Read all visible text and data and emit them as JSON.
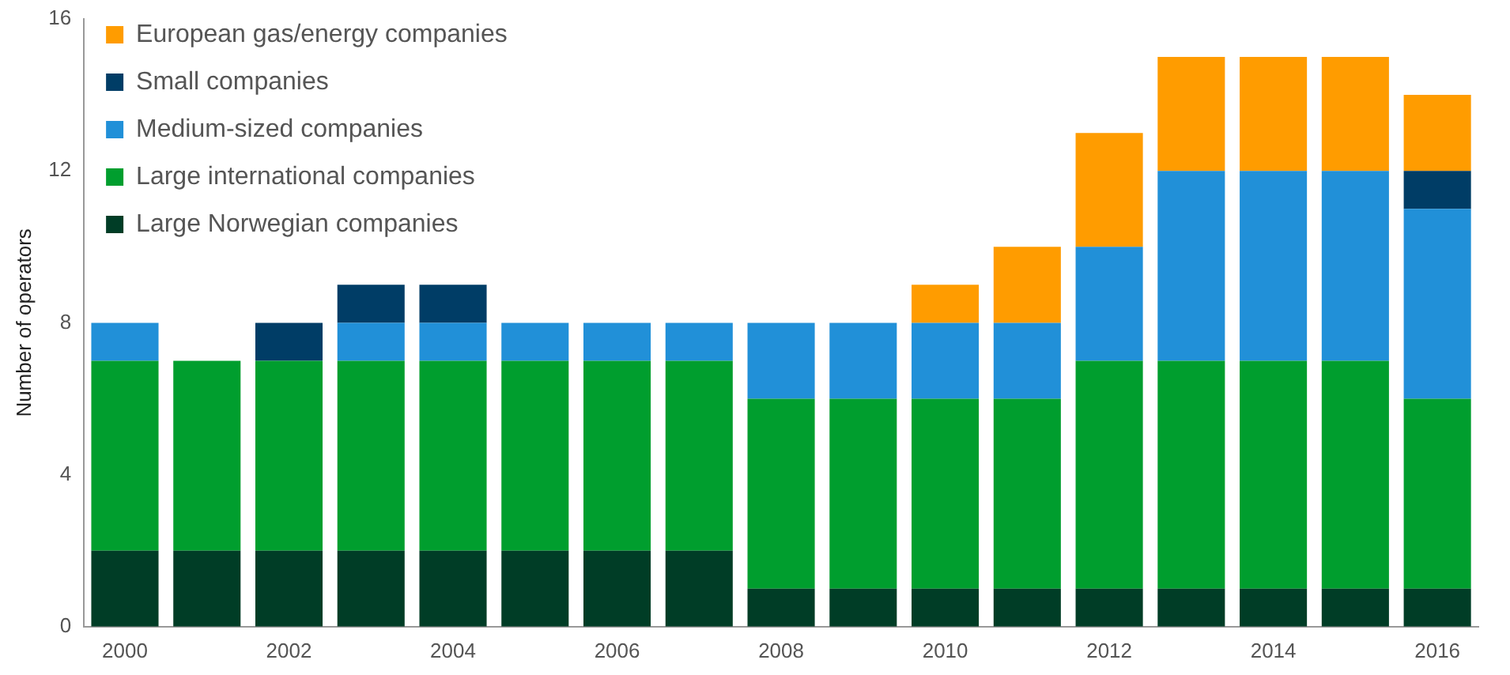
{
  "chart_data": {
    "type": "bar",
    "stacked": true,
    "ylabel": "Number of operators",
    "categories": [
      "2000",
      null,
      "2002",
      null,
      "2004",
      null,
      "2006",
      null,
      "2008",
      null,
      "2010",
      null,
      "2012",
      null,
      "2014",
      null,
      "2016"
    ],
    "series": [
      {
        "name": "Large Norwegian companies",
        "color": "#003d26",
        "values": [
          2,
          2,
          2,
          2,
          2,
          2,
          2,
          2,
          1,
          1,
          1,
          1,
          1,
          1,
          1,
          1,
          1
        ]
      },
      {
        "name": "Large international companies",
        "color": "#009e2e",
        "values": [
          5,
          5,
          5,
          5,
          5,
          5,
          5,
          5,
          5,
          5,
          5,
          5,
          6,
          6,
          6,
          6,
          5
        ]
      },
      {
        "name": "Medium-sized companies",
        "color": "#2190d8",
        "values": [
          1,
          0,
          0,
          1,
          1,
          1,
          1,
          1,
          2,
          2,
          2,
          2,
          3,
          5,
          5,
          5,
          5
        ]
      },
      {
        "name": "Small companies",
        "color": "#003d66",
        "values": [
          0,
          0,
          1,
          1,
          1,
          0,
          0,
          0,
          0,
          0,
          0,
          0,
          0,
          0,
          0,
          0,
          1
        ]
      },
      {
        "name": "European gas/energy companies",
        "color": "#ff9c00",
        "values": [
          0,
          0,
          0,
          0,
          0,
          0,
          0,
          0,
          0,
          0,
          1,
          2,
          3,
          3,
          3,
          3,
          2
        ]
      }
    ],
    "ylim": [
      0,
      16
    ],
    "yticks": [
      0,
      4,
      8,
      12,
      16
    ],
    "grid": false,
    "legend": "top left"
  }
}
